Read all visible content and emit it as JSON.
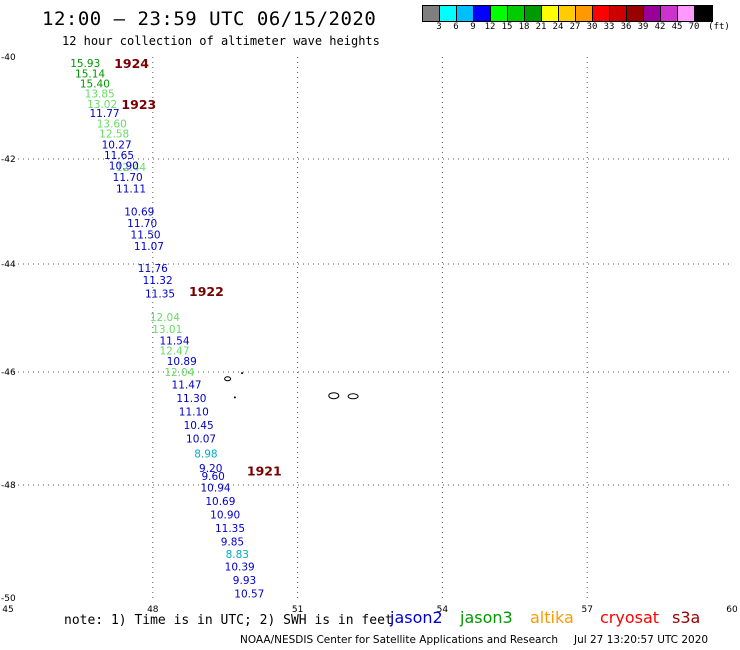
{
  "header": {
    "title": "12:00 – 23:59 UTC 06/15/2020",
    "subtitle": "12 hour collection of altimeter wave heights"
  },
  "colorbar": {
    "colors": [
      "#7f7f7f",
      "#00ffff",
      "#00bfff",
      "#0000ff",
      "#00ff00",
      "#00cc00",
      "#009900",
      "#ffff00",
      "#ffcc00",
      "#ff9900",
      "#ff0000",
      "#cc0000",
      "#990000",
      "#990099",
      "#cc33cc",
      "#ff99ff",
      "#000000"
    ],
    "labels": [
      "3",
      "6",
      "9",
      "12",
      "15",
      "18",
      "21",
      "24",
      "27",
      "30",
      "33",
      "36",
      "39",
      "42",
      "45",
      "70"
    ],
    "unit": "(ft)"
  },
  "map": {
    "lon_ticks": [
      "45",
      "48",
      "51",
      "54",
      "57",
      "60"
    ],
    "lat_ticks": [
      "-40",
      "-42",
      "-44",
      "-46",
      "-48",
      "-50"
    ],
    "lon_range": [
      45,
      60
    ],
    "lat_range": [
      -40,
      -50
    ],
    "grid": "dotted"
  },
  "times": [
    {
      "label": "1924",
      "lat": -40.12,
      "lon": 47.2
    },
    {
      "label": "1923",
      "lat": -40.92,
      "lon": 47.35
    },
    {
      "label": "1922",
      "lat": -44.5,
      "lon": 48.75
    },
    {
      "label": "1921",
      "lat": -47.74,
      "lon": 49.95
    }
  ],
  "passes": [
    {
      "name": "jason3",
      "color": "#009900",
      "points": [
        {
          "v": "15.93",
          "lat": -40.12,
          "lon": 46.6
        },
        {
          "v": "15.14",
          "lat": -40.32,
          "lon": 46.7
        },
        {
          "v": "15.40",
          "lat": -40.52,
          "lon": 46.8
        }
      ]
    },
    {
      "name": "jason3-light",
      "color": "#66dd66",
      "points": [
        {
          "v": "13.85",
          "lat": -40.72,
          "lon": 46.9
        },
        {
          "v": "13.02",
          "lat": -40.92,
          "lon": 46.95
        },
        {
          "v": "13.60",
          "lat": -41.3,
          "lon": 47.15
        },
        {
          "v": "12.58",
          "lat": -41.5,
          "lon": 47.2
        },
        {
          "v": "12.44",
          "lat": -42.15,
          "lon": 47.55
        },
        {
          "v": "12.04",
          "lat": -44.98,
          "lon": 48.25
        },
        {
          "v": "13.01",
          "lat": -45.2,
          "lon": 48.3
        },
        {
          "v": "12.47",
          "lat": -45.6,
          "lon": 48.45
        },
        {
          "v": "12.04",
          "lat": -46.0,
          "lon": 48.55
        }
      ]
    },
    {
      "name": "jason2",
      "color": "#0000cc",
      "points": [
        {
          "v": "11.77",
          "lat": -41.1,
          "lon": 47.0
        },
        {
          "v": "10.27",
          "lat": -41.72,
          "lon": 47.25
        },
        {
          "v": "11.65",
          "lat": -41.92,
          "lon": 47.3
        },
        {
          "v": "10.90",
          "lat": -42.12,
          "lon": 47.4
        },
        {
          "v": "11.70",
          "lat": -42.34,
          "lon": 47.48
        },
        {
          "v": "11.11",
          "lat": -42.56,
          "lon": 47.55
        },
        {
          "v": "10.69",
          "lat": -43.0,
          "lon": 47.72
        },
        {
          "v": "11.70",
          "lat": -43.22,
          "lon": 47.78
        },
        {
          "v": "11.50",
          "lat": -43.44,
          "lon": 47.85
        },
        {
          "v": "11.07",
          "lat": -43.66,
          "lon": 47.92
        },
        {
          "v": "11.76",
          "lat": -44.07,
          "lon": 48.0
        },
        {
          "v": "11.32",
          "lat": -44.3,
          "lon": 48.1
        },
        {
          "v": "11.35",
          "lat": -44.55,
          "lon": 48.15
        },
        {
          "v": "11.54",
          "lat": -45.42,
          "lon": 48.45
        },
        {
          "v": "10.89",
          "lat": -45.8,
          "lon": 48.6
        },
        {
          "v": "11.47",
          "lat": -46.22,
          "lon": 48.7
        },
        {
          "v": "11.30",
          "lat": -46.46,
          "lon": 48.8
        },
        {
          "v": "11.10",
          "lat": -46.7,
          "lon": 48.85
        },
        {
          "v": "10.45",
          "lat": -46.94,
          "lon": 48.95
        },
        {
          "v": "10.07",
          "lat": -47.18,
          "lon": 49.0
        },
        {
          "v": "9.20",
          "lat": -47.7,
          "lon": 49.2
        },
        {
          "v": "9.60",
          "lat": -47.84,
          "lon": 49.25
        },
        {
          "v": "10.94",
          "lat": -48.04,
          "lon": 49.3
        },
        {
          "v": "10.69",
          "lat": -48.28,
          "lon": 49.4
        },
        {
          "v": "10.90",
          "lat": -48.52,
          "lon": 49.5
        },
        {
          "v": "11.35",
          "lat": -48.76,
          "lon": 49.6
        },
        {
          "v": "9.85",
          "lat": -49.0,
          "lon": 49.65
        },
        {
          "v": "10.39",
          "lat": -49.44,
          "lon": 49.8
        },
        {
          "v": "9.93",
          "lat": -49.68,
          "lon": 49.9
        },
        {
          "v": "10.57",
          "lat": -49.92,
          "lon": 50.0
        }
      ]
    },
    {
      "name": "jason2-light",
      "color": "#00aacc",
      "points": [
        {
          "v": "8.98",
          "lat": -47.44,
          "lon": 49.1
        },
        {
          "v": "8.83",
          "lat": -49.22,
          "lon": 49.75
        }
      ]
    }
  ],
  "footer": {
    "note": "note: 1) Time is in UTC; 2) SWH is in feet",
    "satellites": [
      {
        "name": "jason2",
        "color": "#0000cc"
      },
      {
        "name": "jason3",
        "color": "#009900"
      },
      {
        "name": "altika",
        "color": "#ff9900"
      },
      {
        "name": "cryosat",
        "color": "#ff0000"
      },
      {
        "name": "s3a",
        "color": "#990000"
      }
    ],
    "credit": "NOAA/NESDIS Center for Satellite Applications and Research",
    "timestamp": "Jul 27 13:20:57 UTC 2020"
  }
}
